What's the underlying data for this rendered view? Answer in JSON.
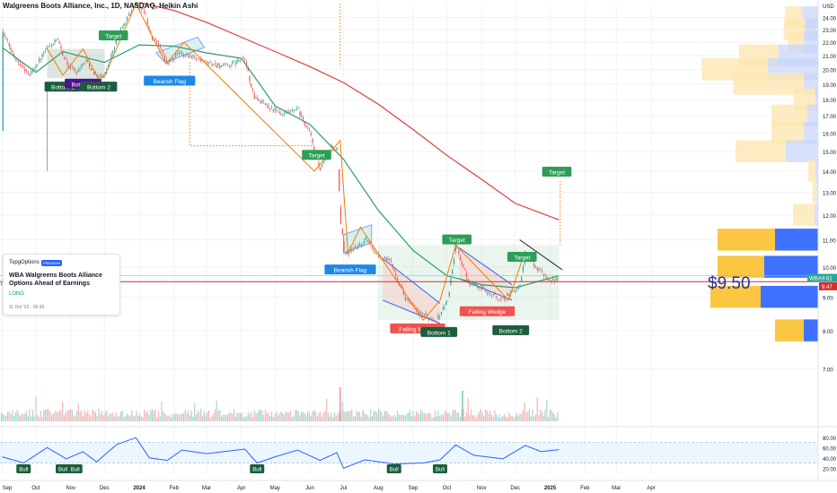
{
  "header": {
    "title": "Walgreens Boots Alliance, Inc., 1D, NASDAQ, Heikin Ashi"
  },
  "idea_card": {
    "author": "TopgOptions",
    "badge": "PREMIUM",
    "title": "WBA Walgreens Boots Alliance Options Ahead of Earnings",
    "direction": "LONG",
    "date": "11 Oct '23 · 06:36"
  },
  "colors": {
    "up": "#26a69a",
    "down": "#ef5350",
    "sma_fast": "#2e9e6a",
    "sma_slow": "#e03c3c",
    "zigzag": "#f57c00",
    "channel": "#2962ff",
    "vp_up": "#2962ff",
    "vp_down": "#fbc02d",
    "target_label": "#2e9e57",
    "wedge_label": "#ef5350",
    "rsi": "#2962ff"
  },
  "chart_data": {
    "type": "candlestick",
    "symbol": "WBA",
    "interval": "1D",
    "style": "Heikin Ashi",
    "ylim": [
      6.6,
      25.2
    ],
    "y_scale": "log",
    "price_ticks": [
      "7.00",
      "8.00",
      "9.00",
      "10.00",
      "11.00",
      "12.00",
      "13.00",
      "14.00",
      "15.00",
      "16.00",
      "17.00",
      "18.00",
      "19.00",
      "20.00",
      "21.00",
      "22.00",
      "23.00",
      "24.00",
      "USD"
    ],
    "x_ticks": [
      "Sep",
      "Oct",
      "Nov",
      "Dec",
      "2024",
      "Feb",
      "Mar",
      "Apr",
      "May",
      "Jun",
      "Jul",
      "Aug",
      "Sep",
      "Oct",
      "Nov",
      "Dec",
      "2025",
      "Feb",
      "Mar",
      "Apr"
    ],
    "last_price": {
      "symbol": "WBA",
      "price": "9.61",
      "second": "9.47"
    },
    "price_line_label": "$9.50",
    "price_line_value": 9.5,
    "anchors": [
      {
        "date": "2023-09-01",
        "price": 22.9
      },
      {
        "date": "2023-09-10",
        "price": 21.2
      },
      {
        "date": "2023-09-25",
        "price": 19.6
      },
      {
        "date": "2023-10-11",
        "price": 21.5
      },
      {
        "date": "2023-10-20",
        "price": 22.2
      },
      {
        "date": "2023-10-28",
        "price": 20.5
      },
      {
        "date": "2023-11-06",
        "price": 19.8
      },
      {
        "date": "2023-11-15",
        "price": 20.7
      },
      {
        "date": "2023-11-22",
        "price": 19.7
      },
      {
        "date": "2023-12-01",
        "price": 19.5
      },
      {
        "date": "2023-12-13",
        "price": 22.5
      },
      {
        "date": "2023-12-29",
        "price": 25.3
      },
      {
        "date": "2024-01-06",
        "price": 24.5
      },
      {
        "date": "2024-01-12",
        "price": 22.3
      },
      {
        "date": "2024-01-18",
        "price": 22.0
      },
      {
        "date": "2024-01-26",
        "price": 20.4
      },
      {
        "date": "2024-02-06",
        "price": 21.2
      },
      {
        "date": "2024-02-16",
        "price": 21.0
      },
      {
        "date": "2024-02-28",
        "price": 20.5
      },
      {
        "date": "2024-03-18",
        "price": 20.2
      },
      {
        "date": "2024-04-04",
        "price": 20.8
      },
      {
        "date": "2024-04-12",
        "price": 18.2
      },
      {
        "date": "2024-04-26",
        "price": 17.5
      },
      {
        "date": "2024-05-08",
        "price": 17.0
      },
      {
        "date": "2024-05-21",
        "price": 17.4
      },
      {
        "date": "2024-06-01",
        "price": 16.0
      },
      {
        "date": "2024-06-10",
        "price": 14.0
      },
      {
        "date": "2024-06-20",
        "price": 15.3
      },
      {
        "date": "2024-06-26",
        "price": 15.0
      },
      {
        "date": "2024-06-28",
        "price": 11.8
      },
      {
        "date": "2024-07-02",
        "price": 10.5
      },
      {
        "date": "2024-07-12",
        "price": 10.7
      },
      {
        "date": "2024-07-22",
        "price": 11.0
      },
      {
        "date": "2024-08-01",
        "price": 10.4
      },
      {
        "date": "2024-08-12",
        "price": 10.2
      },
      {
        "date": "2024-08-25",
        "price": 9.0
      },
      {
        "date": "2024-09-06",
        "price": 8.5
      },
      {
        "date": "2024-09-22",
        "price": 8.3
      },
      {
        "date": "2024-10-02",
        "price": 8.9
      },
      {
        "date": "2024-10-09",
        "price": 10.8
      },
      {
        "date": "2024-10-20",
        "price": 9.5
      },
      {
        "date": "2024-11-05",
        "price": 9.2
      },
      {
        "date": "2024-11-19",
        "price": 8.9
      },
      {
        "date": "2024-11-29",
        "price": 9.2
      },
      {
        "date": "2024-12-05",
        "price": 9.3
      },
      {
        "date": "2024-12-10",
        "price": 10.4
      },
      {
        "date": "2024-12-20",
        "price": 10.0
      },
      {
        "date": "2024-12-31",
        "price": 9.6
      },
      {
        "date": "2025-01-09",
        "price": 9.5
      }
    ],
    "sma_fast": [
      {
        "date": "2023-09-01",
        "price": 21.6
      },
      {
        "date": "2023-10-01",
        "price": 19.8
      },
      {
        "date": "2023-10-25",
        "price": 21.3
      },
      {
        "date": "2023-12-01",
        "price": 20.5
      },
      {
        "date": "2024-01-01",
        "price": 21.8
      },
      {
        "date": "2024-02-01",
        "price": 21.7
      },
      {
        "date": "2024-03-01",
        "price": 21.2
      },
      {
        "date": "2024-04-01",
        "price": 20.8
      },
      {
        "date": "2024-05-01",
        "price": 17.6
      },
      {
        "date": "2024-06-01",
        "price": 16.5
      },
      {
        "date": "2024-07-01",
        "price": 14.6
      },
      {
        "date": "2024-08-01",
        "price": 12.2
      },
      {
        "date": "2024-09-01",
        "price": 10.6
      },
      {
        "date": "2024-10-01",
        "price": 9.7
      },
      {
        "date": "2024-11-01",
        "price": 9.4
      },
      {
        "date": "2024-12-01",
        "price": 9.3
      },
      {
        "date": "2025-01-09",
        "price": 9.7
      }
    ],
    "sma_slow": [
      {
        "date": "2024-01-01",
        "price": 25.3
      },
      {
        "date": "2024-02-01",
        "price": 24.6
      },
      {
        "date": "2024-03-01",
        "price": 23.6
      },
      {
        "date": "2024-04-01",
        "price": 22.4
      },
      {
        "date": "2024-05-01",
        "price": 21.3
      },
      {
        "date": "2024-06-01",
        "price": 20.2
      },
      {
        "date": "2024-07-01",
        "price": 19.1
      },
      {
        "date": "2024-08-01",
        "price": 17.7
      },
      {
        "date": "2024-09-01",
        "price": 16.2
      },
      {
        "date": "2024-10-01",
        "price": 14.8
      },
      {
        "date": "2024-11-01",
        "price": 13.6
      },
      {
        "date": "2024-12-01",
        "price": 12.5
      },
      {
        "date": "2025-01-09",
        "price": 11.8
      }
    ],
    "zigzag": [
      {
        "date": "2023-10-11",
        "price": 21.5
      },
      {
        "date": "2023-10-25",
        "price": 19.6
      },
      {
        "date": "2023-11-12",
        "price": 21.5
      },
      {
        "date": "2023-11-25",
        "price": 19.4
      },
      {
        "date": "2023-12-01",
        "price": 19.5
      },
      {
        "date": "2023-12-29",
        "price": 25.2
      },
      {
        "date": "2024-01-25",
        "price": 20.4
      },
      {
        "date": "2024-02-10",
        "price": 22.0
      },
      {
        "date": "2024-06-05",
        "price": 14.0
      },
      {
        "date": "2024-06-28",
        "price": 15.6
      },
      {
        "date": "2024-07-05",
        "price": 10.5
      },
      {
        "date": "2024-07-16",
        "price": 11.5
      },
      {
        "date": "2024-09-10",
        "price": 8.3
      },
      {
        "date": "2024-09-25",
        "price": 8.9
      },
      {
        "date": "2024-10-09",
        "price": 10.8
      },
      {
        "date": "2024-11-25",
        "price": 8.9
      },
      {
        "date": "2024-12-10",
        "price": 10.6
      }
    ],
    "patterns": [
      {
        "kind": "double-bottom",
        "labels": [
          "Bottom 1",
          "Bottom 2",
          "Bottom 2"
        ],
        "target_label": "Target"
      },
      {
        "kind": "bearish-flag",
        "label": "Bearish Flag",
        "target_label": "Target"
      },
      {
        "kind": "bearish-flag",
        "label": "Bearish Flag"
      },
      {
        "kind": "falling-wedge",
        "label": "Falling Wedge",
        "target_label": "Target"
      },
      {
        "kind": "falling-wedge",
        "label": "Falling Wedge",
        "target_label": "Target"
      },
      {
        "kind": "double-bottom",
        "labels": [
          "Bottom 1",
          "Bottom 2"
        ],
        "target_label": "Target"
      }
    ],
    "volume_profile": [
      {
        "price": 24.0,
        "up": 22,
        "down": 24
      },
      {
        "price": 23.0,
        "up": 18,
        "down": 30
      },
      {
        "price": 22.0,
        "up": 20,
        "down": 22
      },
      {
        "price": 21.0,
        "up": 55,
        "down": 55
      },
      {
        "price": 20.0,
        "up": 70,
        "down": 92
      },
      {
        "price": 19.0,
        "up": 20,
        "down": 98
      },
      {
        "price": 18.0,
        "up": 4,
        "down": 30
      },
      {
        "price": 17.0,
        "up": 15,
        "down": 50
      },
      {
        "price": 16.0,
        "up": 20,
        "down": 45
      },
      {
        "price": 15.0,
        "up": 45,
        "down": 70
      },
      {
        "price": 14.0,
        "up": 4,
        "down": 10
      },
      {
        "price": 13.0,
        "up": 2,
        "down": 6
      },
      {
        "price": 12.0,
        "up": 5,
        "down": 30
      },
      {
        "price": 11.0,
        "up": 60,
        "down": 80
      },
      {
        "price": 10.0,
        "up": 75,
        "down": 65
      },
      {
        "price": 9.0,
        "up": 80,
        "down": 70
      },
      {
        "price": 8.0,
        "up": 20,
        "down": 40
      }
    ],
    "rsi": {
      "levels": [
        "80.00",
        "60.00",
        "40.00",
        "20.00"
      ],
      "ylim": [
        10,
        90
      ],
      "band": [
        30,
        70
      ],
      "values": [
        {
          "date": "2023-09-01",
          "v": 42
        },
        {
          "date": "2023-09-20",
          "v": 30
        },
        {
          "date": "2023-10-11",
          "v": 60
        },
        {
          "date": "2023-10-28",
          "v": 38
        },
        {
          "date": "2023-11-12",
          "v": 52
        },
        {
          "date": "2023-11-24",
          "v": 32
        },
        {
          "date": "2023-12-12",
          "v": 66
        },
        {
          "date": "2023-12-29",
          "v": 79
        },
        {
          "date": "2024-01-10",
          "v": 40
        },
        {
          "date": "2024-01-26",
          "v": 35
        },
        {
          "date": "2024-02-08",
          "v": 55
        },
        {
          "date": "2024-03-01",
          "v": 48
        },
        {
          "date": "2024-04-04",
          "v": 57
        },
        {
          "date": "2024-04-15",
          "v": 30
        },
        {
          "date": "2024-05-01",
          "v": 42
        },
        {
          "date": "2024-05-21",
          "v": 55
        },
        {
          "date": "2024-06-10",
          "v": 35
        },
        {
          "date": "2024-06-25",
          "v": 50
        },
        {
          "date": "2024-07-01",
          "v": 20
        },
        {
          "date": "2024-07-20",
          "v": 36
        },
        {
          "date": "2024-08-15",
          "v": 28
        },
        {
          "date": "2024-09-10",
          "v": 30
        },
        {
          "date": "2024-09-25",
          "v": 36
        },
        {
          "date": "2024-10-09",
          "v": 65
        },
        {
          "date": "2024-10-25",
          "v": 45
        },
        {
          "date": "2024-11-20",
          "v": 38
        },
        {
          "date": "2024-12-10",
          "v": 64
        },
        {
          "date": "2024-12-24",
          "v": 52
        },
        {
          "date": "2025-01-09",
          "v": 56
        }
      ],
      "bull_labels": [
        "Bull",
        "Bull",
        "Bull",
        "Bull",
        "Bull",
        "Bull"
      ]
    }
  }
}
